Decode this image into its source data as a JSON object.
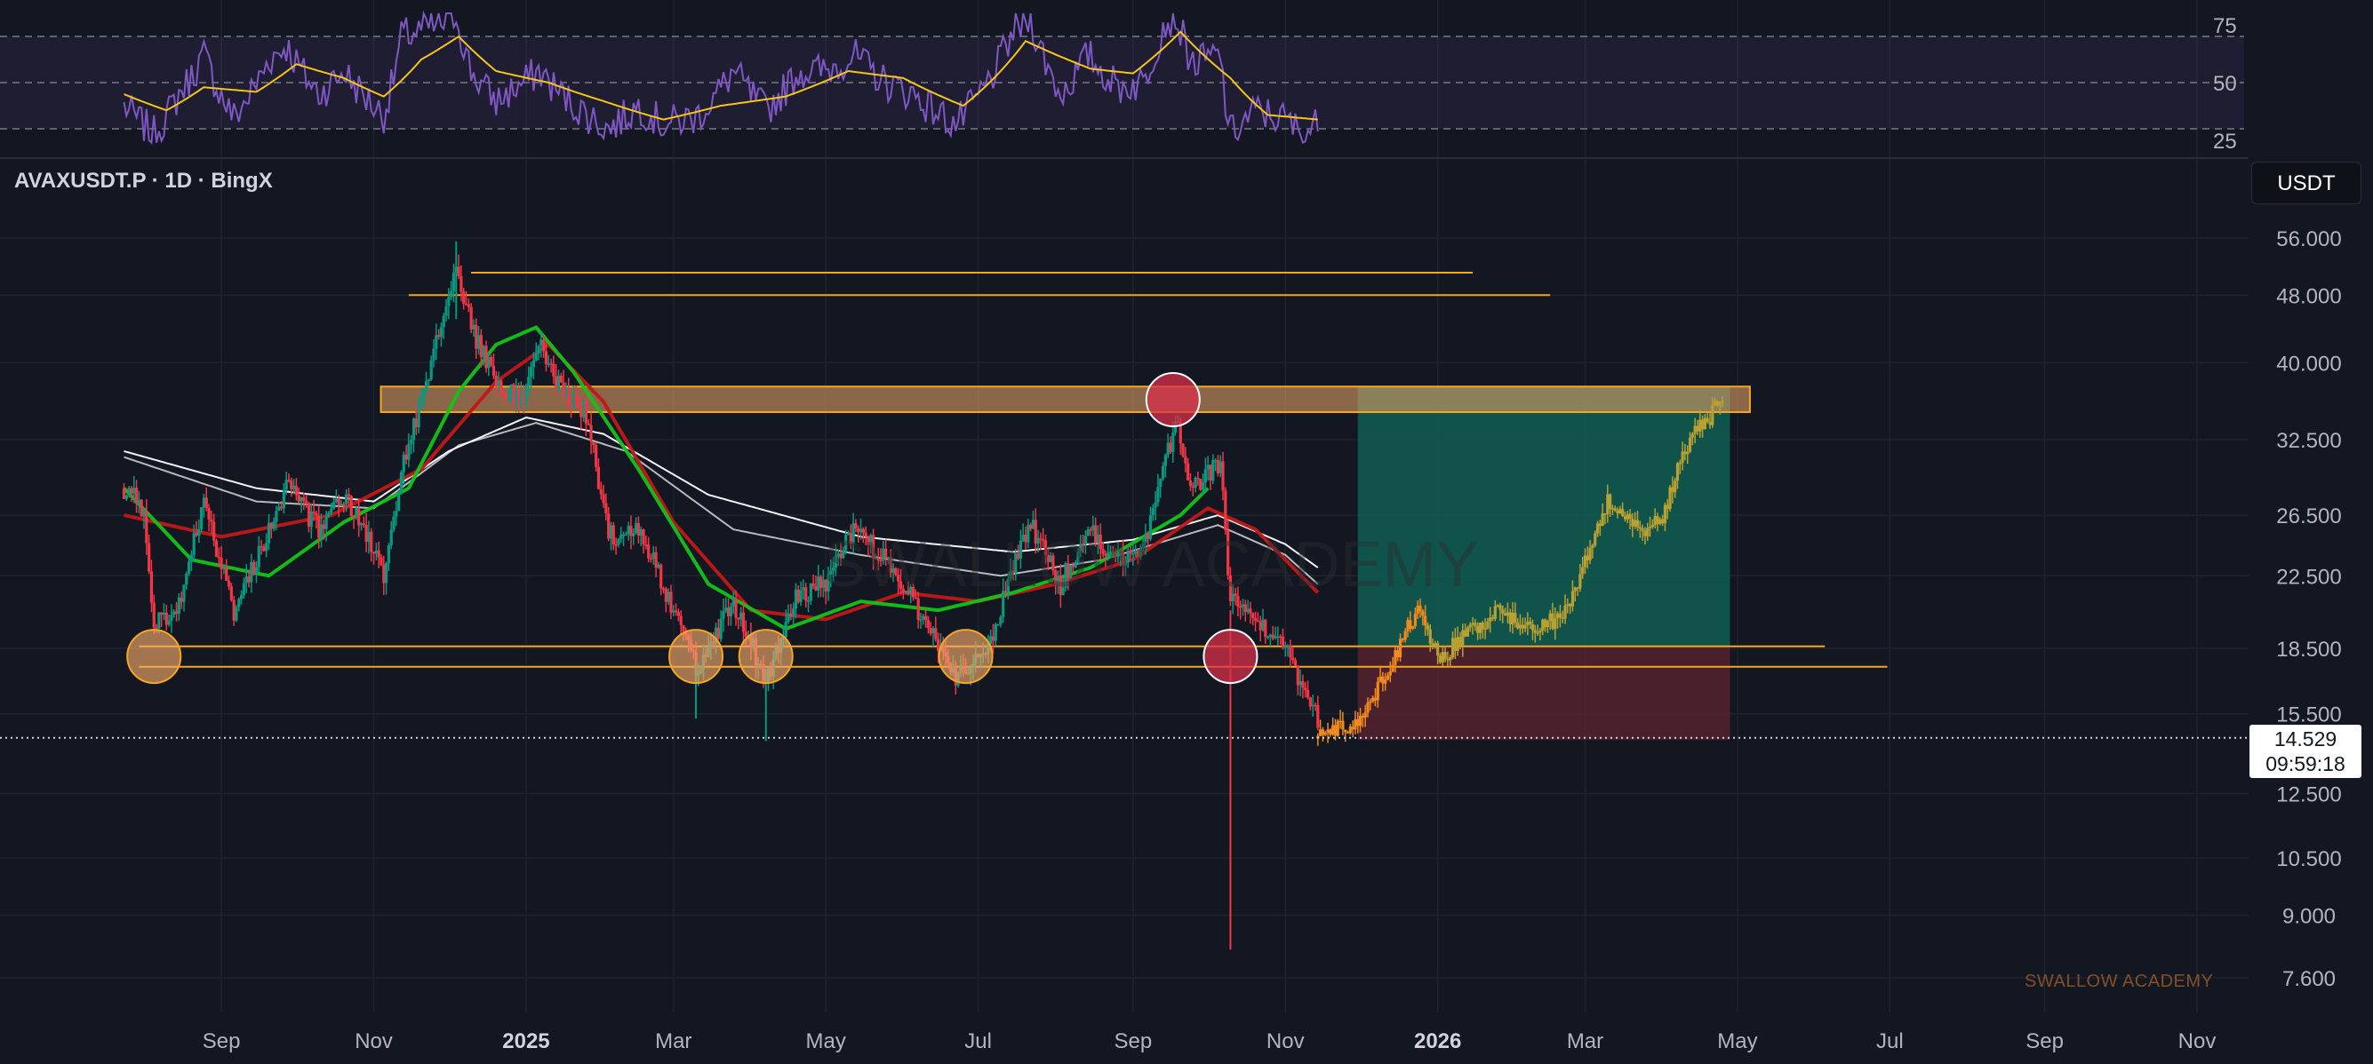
{
  "header": {
    "symbol_title": "AVAXUSDT.P · 1D · BingX",
    "currency": "USDT"
  },
  "last_price": {
    "value": "14.529",
    "countdown": "09:59:18"
  },
  "watermark": {
    "corner_text": "SWALLOW ACADEMY",
    "center_text": "SWALLOW ACADEMY"
  },
  "colors": {
    "background": "#131722",
    "grid": "#1f2330",
    "axis_text": "#b2b5be",
    "candle_up": "#089981",
    "candle_down": "#f23645",
    "rsi_line": "#7e57c2",
    "rsi_ma": "#f5c518",
    "level_line": "#f5a623",
    "zone_fill": "#f0a868",
    "target_fill": "#0f5e52",
    "stop_fill": "#5e2430",
    "projection_early": "#f08a1c",
    "projection_late": "#b8a032",
    "ma_white": "#ffffff",
    "ma_red": "#c01818",
    "ma_green": "#12c418"
  },
  "chart_data": {
    "type": "candlestick",
    "symbol": "AVAXUSDT.P",
    "interval": "1D",
    "exchange": "BingX",
    "y_scale": "log",
    "ylim": [
      7.0,
      62.0
    ],
    "x_range": [
      "2024-07-24",
      "2026-11-30"
    ],
    "y_ticks": [
      "56.000",
      "48.000",
      "40.000",
      "32.500",
      "26.500",
      "22.500",
      "18.500",
      "15.500",
      "12.500",
      "10.500",
      "9.000",
      "7.600"
    ],
    "x_ticks": [
      {
        "date": "2024-09-01",
        "label": "Sep"
      },
      {
        "date": "2024-11-01",
        "label": "Nov"
      },
      {
        "date": "2025-01-01",
        "label": "2025"
      },
      {
        "date": "2025-03-01",
        "label": "Mar"
      },
      {
        "date": "2025-05-01",
        "label": "May"
      },
      {
        "date": "2025-07-01",
        "label": "Jul"
      },
      {
        "date": "2025-09-01",
        "label": "Sep"
      },
      {
        "date": "2025-11-01",
        "label": "Nov"
      },
      {
        "date": "2026-01-01",
        "label": "2026"
      },
      {
        "date": "2026-03-01",
        "label": "Mar"
      },
      {
        "date": "2026-05-01",
        "label": "May"
      },
      {
        "date": "2026-07-01",
        "label": "Jul"
      },
      {
        "date": "2026-09-01",
        "label": "Sep"
      },
      {
        "date": "2026-11-01",
        "label": "Nov"
      }
    ],
    "price_path": [
      [
        "2024-07-24",
        28.5
      ],
      [
        "2024-08-01",
        27.0
      ],
      [
        "2024-08-05",
        19.5
      ],
      [
        "2024-08-15",
        21.0
      ],
      [
        "2024-08-25",
        27.5
      ],
      [
        "2024-09-06",
        20.5
      ],
      [
        "2024-09-20",
        25.5
      ],
      [
        "2024-09-27",
        28.8
      ],
      [
        "2024-10-10",
        25.5
      ],
      [
        "2024-10-20",
        28.0
      ],
      [
        "2024-10-31",
        24.5
      ],
      [
        "2024-11-05",
        22.5
      ],
      [
        "2024-11-12",
        30.0
      ],
      [
        "2024-11-20",
        36.0
      ],
      [
        "2024-11-28",
        44.0
      ],
      [
        "2024-12-04",
        52.0
      ],
      [
        "2024-12-10",
        44.0
      ],
      [
        "2024-12-20",
        38.0
      ],
      [
        "2024-12-31",
        36.0
      ],
      [
        "2025-01-06",
        42.0
      ],
      [
        "2025-01-15",
        37.0
      ],
      [
        "2025-01-25",
        35.0
      ],
      [
        "2025-02-03",
        25.0
      ],
      [
        "2025-02-15",
        25.5
      ],
      [
        "2025-02-25",
        22.0
      ],
      [
        "2025-03-10",
        17.5
      ],
      [
        "2025-03-25",
        21.0
      ],
      [
        "2025-04-07",
        17.0
      ],
      [
        "2025-04-20",
        21.5
      ],
      [
        "2025-05-01",
        22.0
      ],
      [
        "2025-05-12",
        25.5
      ],
      [
        "2025-05-25",
        23.5
      ],
      [
        "2025-06-05",
        21.0
      ],
      [
        "2025-06-22",
        17.0
      ],
      [
        "2025-07-05",
        18.5
      ],
      [
        "2025-07-15",
        23.0
      ],
      [
        "2025-07-22",
        26.0
      ],
      [
        "2025-08-03",
        22.0
      ],
      [
        "2025-08-14",
        25.5
      ],
      [
        "2025-08-26",
        23.5
      ],
      [
        "2025-09-05",
        24.0
      ],
      [
        "2025-09-13",
        30.0
      ],
      [
        "2025-09-18",
        34.0
      ],
      [
        "2025-09-25",
        28.5
      ],
      [
        "2025-10-06",
        30.5
      ],
      [
        "2025-10-10",
        21.0
      ],
      [
        "2025-10-20",
        20.0
      ],
      [
        "2025-11-01",
        18.5
      ],
      [
        "2025-11-08",
        16.5
      ],
      [
        "2025-11-14",
        15.3
      ]
    ],
    "annotated_wicks": {
      "2025-10-10_low": 8.2,
      "2025-04-07_low": 14.4,
      "2025-03-10_low": 15.3,
      "2024-12-04_high": 55.5
    },
    "projection_path": [
      [
        "2025-11-14",
        14.5
      ],
      [
        "2025-11-20",
        14.8
      ],
      [
        "2025-12-01",
        15.3
      ],
      [
        "2025-12-10",
        17.0
      ],
      [
        "2025-12-18",
        19.0
      ],
      [
        "2025-12-24",
        20.5
      ],
      [
        "2026-01-02",
        18.0
      ],
      [
        "2026-01-15",
        19.5
      ],
      [
        "2026-01-25",
        20.5
      ],
      [
        "2026-02-05",
        19.5
      ],
      [
        "2026-02-20",
        20.0
      ],
      [
        "2026-03-01",
        23.5
      ],
      [
        "2026-03-10",
        27.5
      ],
      [
        "2026-03-25",
        25.5
      ],
      [
        "2026-04-01",
        26.5
      ],
      [
        "2026-04-10",
        32.0
      ],
      [
        "2026-04-20",
        34.5
      ],
      [
        "2026-04-25",
        36.5
      ]
    ],
    "moving_averages": [
      {
        "color": "white",
        "points": [
          [
            "2024-07-24",
            31.5
          ],
          [
            "2024-09-15",
            28.5
          ],
          [
            "2024-11-01",
            27.5
          ],
          [
            "2024-12-01",
            31.5
          ],
          [
            "2025-01-01",
            34.5
          ],
          [
            "2025-02-01",
            33.0
          ],
          [
            "2025-03-15",
            28.0
          ],
          [
            "2025-05-15",
            25.0
          ],
          [
            "2025-07-15",
            24.0
          ],
          [
            "2025-09-01",
            24.8
          ],
          [
            "2025-10-05",
            26.5
          ],
          [
            "2025-11-01",
            24.5
          ],
          [
            "2025-11-14",
            23.0
          ]
        ]
      },
      {
        "color": "white",
        "points": [
          [
            "2024-07-24",
            31.0
          ],
          [
            "2024-09-15",
            27.5
          ],
          [
            "2024-11-01",
            27.0
          ],
          [
            "2024-12-05",
            32.0
          ],
          [
            "2025-01-05",
            34.0
          ],
          [
            "2025-02-10",
            31.5
          ],
          [
            "2025-03-25",
            25.5
          ],
          [
            "2025-05-15",
            23.8
          ],
          [
            "2025-07-10",
            22.5
          ],
          [
            "2025-08-20",
            23.5
          ],
          [
            "2025-10-05",
            25.8
          ],
          [
            "2025-11-01",
            23.8
          ],
          [
            "2025-11-14",
            22.0
          ]
        ]
      },
      {
        "color": "red",
        "points": [
          [
            "2024-07-24",
            26.5
          ],
          [
            "2024-09-01",
            25.0
          ],
          [
            "2024-10-15",
            26.5
          ],
          [
            "2024-11-20",
            30.0
          ],
          [
            "2024-12-20",
            38.0
          ],
          [
            "2025-01-10",
            42.0
          ],
          [
            "2025-02-01",
            36.0
          ],
          [
            "2025-03-01",
            26.0
          ],
          [
            "2025-04-01",
            20.5
          ],
          [
            "2025-05-01",
            20.0
          ],
          [
            "2025-06-01",
            21.5
          ],
          [
            "2025-07-01",
            21.0
          ],
          [
            "2025-08-01",
            22.0
          ],
          [
            "2025-09-01",
            23.5
          ],
          [
            "2025-10-01",
            27.0
          ],
          [
            "2025-10-20",
            25.5
          ],
          [
            "2025-11-14",
            21.5
          ]
        ]
      },
      {
        "color": "green",
        "points": [
          [
            "2024-07-24",
            28.5
          ],
          [
            "2024-08-20",
            23.5
          ],
          [
            "2024-09-20",
            22.5
          ],
          [
            "2024-10-20",
            26.0
          ],
          [
            "2024-11-15",
            28.5
          ],
          [
            "2024-12-05",
            37.0
          ],
          [
            "2024-12-20",
            42.0
          ],
          [
            "2025-01-05",
            44.0
          ],
          [
            "2025-01-20",
            39.0
          ],
          [
            "2025-02-15",
            30.0
          ],
          [
            "2025-03-15",
            22.0
          ],
          [
            "2025-04-15",
            19.5
          ],
          [
            "2025-05-15",
            21.0
          ],
          [
            "2025-06-15",
            20.5
          ],
          [
            "2025-07-15",
            21.5
          ],
          [
            "2025-08-15",
            23.0
          ],
          [
            "2025-09-20",
            26.5
          ],
          [
            "2025-10-01",
            28.5
          ]
        ]
      }
    ],
    "horizontal_levels": [
      {
        "price": 51.0,
        "from": "2024-12-10",
        "to": "2026-01-15"
      },
      {
        "price": 48.0,
        "from": "2024-11-15",
        "to": "2026-02-15"
      },
      {
        "price": 18.6,
        "from": "2024-07-30",
        "to": "2026-06-05"
      },
      {
        "price": 17.6,
        "from": "2024-07-30",
        "to": "2026-06-30"
      }
    ],
    "resistance_zone": {
      "low": 35.0,
      "high": 37.5,
      "from": "2024-11-01",
      "to": "2026-05-01"
    },
    "position_box": {
      "from": "2025-11-30",
      "to": "2026-04-28",
      "entry": 18.6,
      "target": 37.5,
      "stop": 14.45
    },
    "markers": [
      {
        "date": "2024-08-05",
        "price": 18.1,
        "kind": "support-touch"
      },
      {
        "date": "2025-03-10",
        "price": 18.1,
        "kind": "support-touch"
      },
      {
        "date": "2025-04-07",
        "price": 18.1,
        "kind": "support-touch"
      },
      {
        "date": "2025-06-26",
        "price": 18.1,
        "kind": "support-touch"
      },
      {
        "date": "2025-09-17",
        "price": 36.2,
        "kind": "rejection"
      },
      {
        "date": "2025-10-10",
        "price": 18.1,
        "kind": "breakdown"
      }
    ]
  },
  "rsi_data": {
    "ticks": [
      "75",
      "50",
      "25"
    ],
    "levels": [
      70,
      50,
      30
    ],
    "series": [
      [
        "2024-07-24",
        40
      ],
      [
        "2024-08-05",
        28
      ],
      [
        "2024-08-15",
        45
      ],
      [
        "2024-08-25",
        62
      ],
      [
        "2024-09-06",
        35
      ],
      [
        "2024-09-20",
        60
      ],
      [
        "2024-09-27",
        66
      ],
      [
        "2024-10-10",
        45
      ],
      [
        "2024-10-20",
        55
      ],
      [
        "2024-11-05",
        36
      ],
      [
        "2024-11-12",
        70
      ],
      [
        "2024-11-28",
        75
      ],
      [
        "2024-12-04",
        80
      ],
      [
        "2024-12-10",
        55
      ],
      [
        "2024-12-20",
        42
      ],
      [
        "2025-01-06",
        55
      ],
      [
        "2025-01-15",
        45
      ],
      [
        "2025-02-03",
        30
      ],
      [
        "2025-02-15",
        40
      ],
      [
        "2025-02-25",
        32
      ],
      [
        "2025-03-10",
        35
      ],
      [
        "2025-03-25",
        55
      ],
      [
        "2025-04-07",
        38
      ],
      [
        "2025-04-20",
        55
      ],
      [
        "2025-05-01",
        55
      ],
      [
        "2025-05-12",
        62
      ],
      [
        "2025-05-25",
        50
      ],
      [
        "2025-06-05",
        45
      ],
      [
        "2025-06-22",
        32
      ],
      [
        "2025-07-05",
        50
      ],
      [
        "2025-07-15",
        72
      ],
      [
        "2025-07-22",
        78
      ],
      [
        "2025-08-03",
        45
      ],
      [
        "2025-08-14",
        62
      ],
      [
        "2025-08-26",
        48
      ],
      [
        "2025-09-05",
        50
      ],
      [
        "2025-09-13",
        75
      ],
      [
        "2025-09-18",
        79
      ],
      [
        "2025-09-25",
        58
      ],
      [
        "2025-10-06",
        62
      ],
      [
        "2025-10-10",
        28
      ],
      [
        "2025-10-20",
        38
      ],
      [
        "2025-11-01",
        34
      ],
      [
        "2025-11-08",
        28
      ],
      [
        "2025-11-14",
        32
      ]
    ],
    "ma": [
      [
        "2024-07-24",
        45
      ],
      [
        "2024-08-10",
        38
      ],
      [
        "2024-08-25",
        48
      ],
      [
        "2024-09-15",
        46
      ],
      [
        "2024-10-01",
        58
      ],
      [
        "2024-10-20",
        52
      ],
      [
        "2024-11-05",
        44
      ],
      [
        "2024-11-20",
        60
      ],
      [
        "2024-12-05",
        70
      ],
      [
        "2024-12-20",
        55
      ],
      [
        "2025-01-10",
        50
      ],
      [
        "2025-02-01",
        42
      ],
      [
        "2025-02-25",
        34
      ],
      [
        "2025-03-20",
        40
      ],
      [
        "2025-04-15",
        44
      ],
      [
        "2025-05-10",
        55
      ],
      [
        "2025-06-01",
        52
      ],
      [
        "2025-06-25",
        40
      ],
      [
        "2025-07-20",
        68
      ],
      [
        "2025-08-15",
        56
      ],
      [
        "2025-09-01",
        54
      ],
      [
        "2025-09-20",
        72
      ],
      [
        "2025-10-10",
        52
      ],
      [
        "2025-10-25",
        36
      ],
      [
        "2025-11-14",
        34
      ]
    ]
  }
}
